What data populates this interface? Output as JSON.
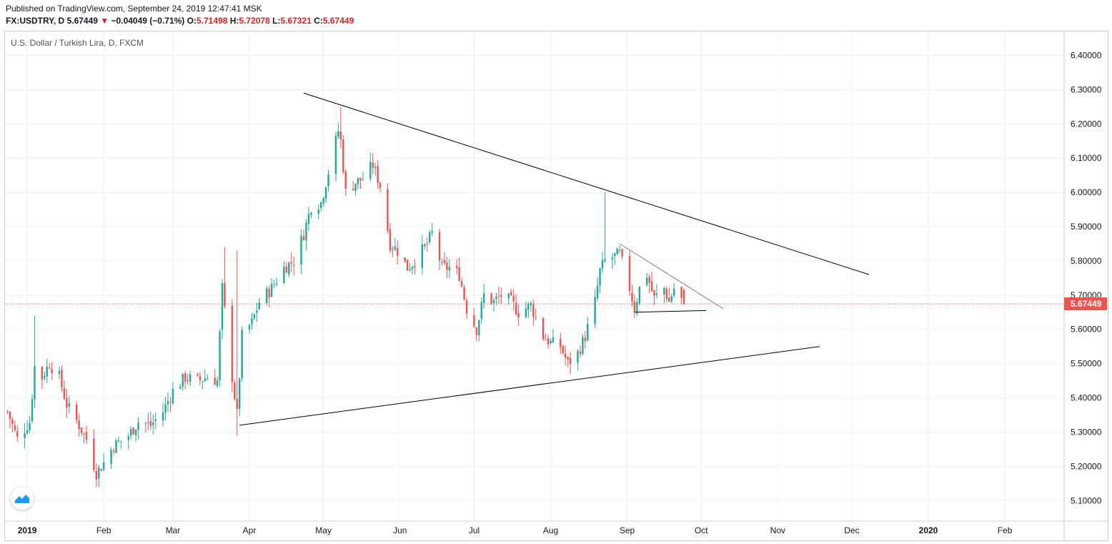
{
  "header": {
    "published": "Published on TradingView.com, September 24, 2019 12:47:41 MSK",
    "symbol_line": "FX:USDTRY, D",
    "last": "5.67449",
    "direction_icon": "down-triangle-icon",
    "change": "−0.04049 (−0.71%)",
    "o_label": "O:",
    "o_value": "5.71498",
    "h_label": "H:",
    "h_value": "5.72078",
    "l_label": "L:",
    "l_value": "5.67321",
    "c_label": "C:",
    "c_value": "5.67449"
  },
  "series_title": "U.S. Dollar / Turkish Lira, D, FXCM",
  "logo_icon": "tradingview-logo-icon",
  "colors": {
    "up": "#26a69a",
    "down": "#ef5350",
    "grid": "#eef0f3",
    "trendline": "#000000",
    "price_badge": "#ef5350",
    "last_price_line": "#ef5350"
  },
  "chart_data": {
    "type": "candlestick",
    "symbol": "FX:USDTRY",
    "interval": "D",
    "y_axis": {
      "ylim": [
        5.04,
        6.47
      ],
      "ticks": [
        "6.40000",
        "6.30000",
        "6.20000",
        "6.10000",
        "6.00000",
        "5.90000",
        "5.80000",
        "5.70000",
        "5.60000",
        "5.50000",
        "5.40000",
        "5.30000",
        "5.20000",
        "5.10000"
      ],
      "last_price_label": "5.67449",
      "last_price": 5.67449
    },
    "x_axis": {
      "xlim": [
        "2018-12-23",
        "2020-02-25"
      ],
      "ticks": [
        {
          "label": "2019",
          "date": "2019-01-01",
          "bold": true
        },
        {
          "label": "Feb",
          "date": "2019-02-01"
        },
        {
          "label": "Mar",
          "date": "2019-03-01"
        },
        {
          "label": "Apr",
          "date": "2019-04-01"
        },
        {
          "label": "May",
          "date": "2019-05-01"
        },
        {
          "label": "Jun",
          "date": "2019-06-01"
        },
        {
          "label": "Jul",
          "date": "2019-07-01"
        },
        {
          "label": "Aug",
          "date": "2019-08-01"
        },
        {
          "label": "Sep",
          "date": "2019-09-01"
        },
        {
          "label": "Oct",
          "date": "2019-10-01"
        },
        {
          "label": "Nov",
          "date": "2019-11-01"
        },
        {
          "label": "Dec",
          "date": "2019-12-01"
        },
        {
          "label": "2020",
          "date": "2020-01-01",
          "bold": true
        },
        {
          "label": "Feb",
          "date": "2020-02-01"
        }
      ]
    },
    "anchor_close": [
      [
        "2018-12-24",
        5.36
      ],
      [
        "2018-12-28",
        5.28
      ],
      [
        "2019-01-02",
        5.33
      ],
      [
        "2019-01-04",
        5.49
      ],
      [
        "2019-01-07",
        5.46
      ],
      [
        "2019-01-10",
        5.5
      ],
      [
        "2019-01-14",
        5.46
      ],
      [
        "2019-01-17",
        5.38
      ],
      [
        "2019-01-22",
        5.32
      ],
      [
        "2019-01-25",
        5.28
      ],
      [
        "2019-01-29",
        5.18
      ],
      [
        "2019-02-01",
        5.21
      ],
      [
        "2019-02-05",
        5.26
      ],
      [
        "2019-02-11",
        5.29
      ],
      [
        "2019-02-15",
        5.33
      ],
      [
        "2019-02-20",
        5.32
      ],
      [
        "2019-02-25",
        5.36
      ],
      [
        "2019-03-01",
        5.42
      ],
      [
        "2019-03-06",
        5.46
      ],
      [
        "2019-03-11",
        5.45
      ],
      [
        "2019-03-15",
        5.46
      ],
      [
        "2019-03-19",
        5.45
      ],
      [
        "2019-03-21",
        5.72
      ],
      [
        "2019-03-25",
        5.46
      ],
      [
        "2019-03-27",
        5.35
      ],
      [
        "2019-03-29",
        5.58
      ],
      [
        "2019-04-02",
        5.62
      ],
      [
        "2019-04-05",
        5.68
      ],
      [
        "2019-04-10",
        5.72
      ],
      [
        "2019-04-15",
        5.78
      ],
      [
        "2019-04-19",
        5.8
      ],
      [
        "2019-04-23",
        5.88
      ],
      [
        "2019-04-26",
        5.96
      ],
      [
        "2019-04-30",
        5.97
      ],
      [
        "2019-05-03",
        6.06
      ],
      [
        "2019-05-07",
        6.18
      ],
      [
        "2019-05-08",
        6.15
      ],
      [
        "2019-05-10",
        6.0
      ],
      [
        "2019-05-14",
        6.03
      ],
      [
        "2019-05-17",
        6.04
      ],
      [
        "2019-05-21",
        6.08
      ],
      [
        "2019-05-24",
        6.02
      ],
      [
        "2019-05-28",
        5.85
      ],
      [
        "2019-05-31",
        5.83
      ],
      [
        "2019-06-04",
        5.78
      ],
      [
        "2019-06-07",
        5.8
      ],
      [
        "2019-06-12",
        5.85
      ],
      [
        "2019-06-14",
        5.88
      ],
      [
        "2019-06-18",
        5.78
      ],
      [
        "2019-06-21",
        5.78
      ],
      [
        "2019-06-25",
        5.76
      ],
      [
        "2019-06-28",
        5.66
      ],
      [
        "2019-07-02",
        5.6
      ],
      [
        "2019-07-05",
        5.7
      ],
      [
        "2019-07-09",
        5.68
      ],
      [
        "2019-07-12",
        5.7
      ],
      [
        "2019-07-16",
        5.68
      ],
      [
        "2019-07-19",
        5.65
      ],
      [
        "2019-07-24",
        5.67
      ],
      [
        "2019-07-29",
        5.58
      ],
      [
        "2019-08-01",
        5.56
      ],
      [
        "2019-08-05",
        5.55
      ],
      [
        "2019-08-08",
        5.5
      ],
      [
        "2019-08-12",
        5.53
      ],
      [
        "2019-08-15",
        5.58
      ],
      [
        "2019-08-19",
        5.68
      ],
      [
        "2019-08-21",
        5.77
      ],
      [
        "2019-08-23",
        5.8
      ],
      [
        "2019-08-26",
        5.81
      ],
      [
        "2019-08-29",
        5.82
      ],
      [
        "2019-09-02",
        5.72
      ],
      [
        "2019-09-04",
        5.66
      ],
      [
        "2019-09-06",
        5.72
      ],
      [
        "2019-09-09",
        5.76
      ],
      [
        "2019-09-12",
        5.69
      ],
      [
        "2019-09-16",
        5.72
      ],
      [
        "2019-09-18",
        5.68
      ],
      [
        "2019-09-20",
        5.72
      ],
      [
        "2019-09-24",
        5.67449
      ]
    ],
    "trendlines": [
      {
        "name": "upper-resistance-line",
        "from": [
          "2019-04-23",
          6.29
        ],
        "to": [
          "2019-12-08",
          5.76
        ],
        "color": "#000000"
      },
      {
        "name": "lower-support-line",
        "from": [
          "2019-03-28",
          5.32
        ],
        "to": [
          "2019-11-18",
          5.55
        ],
        "color": "#000000"
      },
      {
        "name": "pennant-upper-line",
        "from": [
          "2019-08-29",
          5.85
        ],
        "to": [
          "2019-10-10",
          5.66
        ],
        "color": "#787b86"
      },
      {
        "name": "pennant-lower-line",
        "from": [
          "2019-09-04",
          5.65
        ],
        "to": [
          "2019-10-03",
          5.655
        ],
        "color": "#000000"
      }
    ]
  }
}
